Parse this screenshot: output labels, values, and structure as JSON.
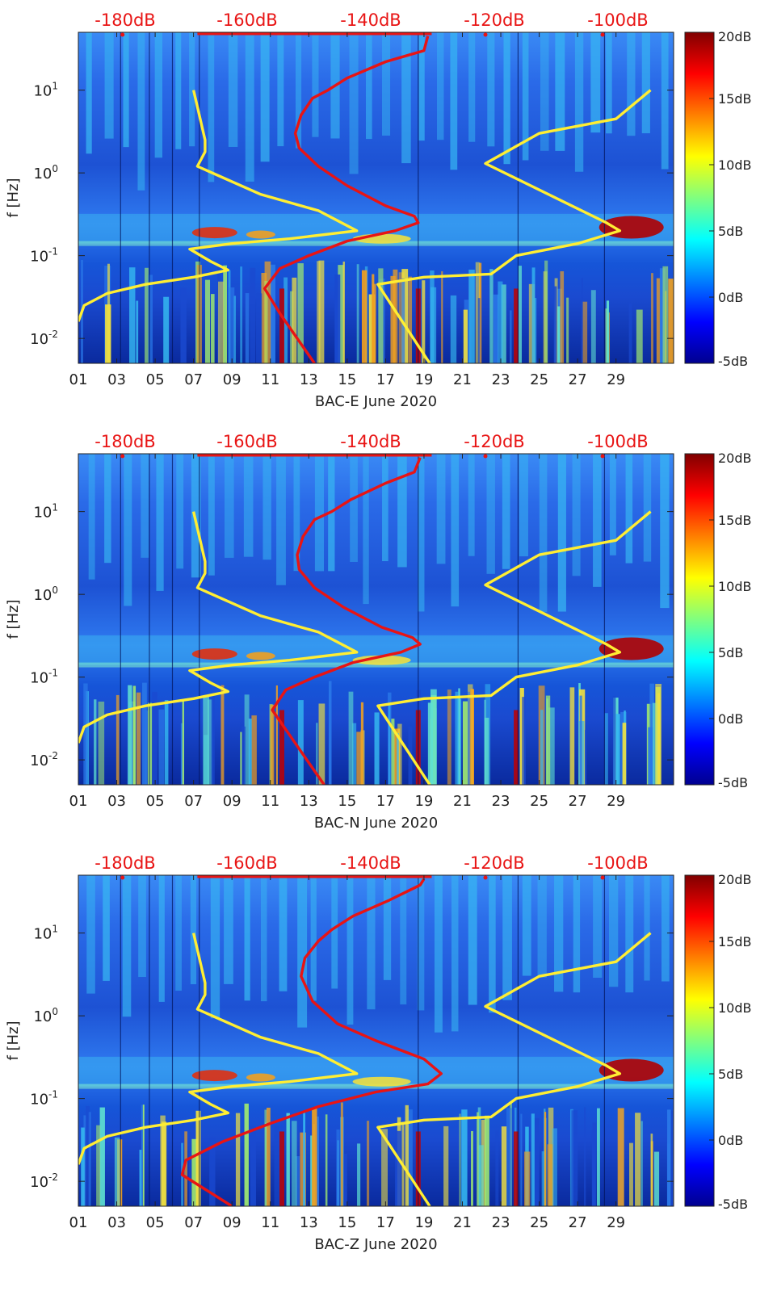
{
  "chart_data": [
    {
      "type": "heatmap",
      "title": "",
      "xlabel": "BAC-E June 2020",
      "ylabel": "f [Hz]",
      "xlim": [
        1,
        32
      ],
      "ylim": [
        0.005,
        50
      ],
      "yscale": "log",
      "x_ticks": [
        "01",
        "03",
        "05",
        "07",
        "09",
        "11",
        "13",
        "15",
        "17",
        "19",
        "21",
        "23",
        "25",
        "27",
        "29"
      ],
      "y_ticks": [
        {
          "value": 0.01,
          "base": "10",
          "exp": "-2"
        },
        {
          "value": 0.1,
          "base": "10",
          "exp": "-1"
        },
        {
          "value": 1,
          "base": "10",
          "exp": "0"
        },
        {
          "value": 10,
          "base": "10",
          "exp": "1"
        }
      ],
      "top_labels": [
        "-180dB",
        "-160dB",
        "-140dB",
        "-120dB",
        "-100dB"
      ],
      "colorbar": {
        "range": [
          -5,
          20
        ],
        "ticks": [
          "20dB",
          "15dB",
          "10dB",
          "5dB",
          "0dB",
          "-5dB"
        ],
        "colormap": "jet"
      },
      "series": [
        {
          "name": "yellow reference curve (left)",
          "color": "#ffee33",
          "points": [
            [
              1.0,
              0.016
            ],
            [
              1.3,
              0.025
            ],
            [
              2.5,
              0.035
            ],
            [
              4.5,
              0.045
            ],
            [
              7.0,
              0.055
            ],
            [
              8.8,
              0.067
            ],
            [
              7.9,
              0.085
            ],
            [
              6.8,
              0.12
            ],
            [
              9.0,
              0.14
            ],
            [
              12.0,
              0.16
            ],
            [
              15.5,
              0.2
            ],
            [
              13.5,
              0.35
            ],
            [
              10.5,
              0.55
            ],
            [
              7.2,
              1.2
            ],
            [
              7.6,
              1.8
            ],
            [
              7.6,
              2.5
            ],
            [
              7.0,
              10.0
            ]
          ]
        },
        {
          "name": "red reference curve",
          "color": "#e81414",
          "points": [
            [
              13.3,
              0.005
            ],
            [
              11.5,
              0.02
            ],
            [
              10.7,
              0.04
            ],
            [
              11.5,
              0.07
            ],
            [
              13.0,
              0.1
            ],
            [
              15.0,
              0.15
            ],
            [
              17.5,
              0.2
            ],
            [
              18.7,
              0.25
            ],
            [
              18.5,
              0.3
            ],
            [
              17.0,
              0.4
            ],
            [
              15.0,
              0.7
            ],
            [
              13.5,
              1.2
            ],
            [
              12.5,
              2.0
            ],
            [
              12.3,
              3.0
            ],
            [
              12.6,
              5.0
            ],
            [
              13.2,
              8.0
            ],
            [
              14.0,
              10.0
            ],
            [
              15.0,
              14.0
            ],
            [
              17.0,
              22.0
            ],
            [
              19.0,
              30.0
            ],
            [
              19.2,
              45.0
            ]
          ]
        },
        {
          "name": "yellow reference curve (right)",
          "color": "#ffee33",
          "points": [
            [
              19.3,
              0.005
            ],
            [
              16.6,
              0.045
            ],
            [
              19.0,
              0.055
            ],
            [
              22.5,
              0.06
            ],
            [
              23.8,
              0.1
            ],
            [
              27.0,
              0.14
            ],
            [
              29.2,
              0.2
            ],
            [
              28.5,
              0.25
            ],
            [
              22.2,
              1.3
            ],
            [
              25.0,
              3.0
            ],
            [
              29.0,
              4.5
            ],
            [
              30.8,
              10.0
            ]
          ]
        }
      ]
    },
    {
      "type": "heatmap",
      "title": "",
      "xlabel": "BAC-N June 2020",
      "ylabel": "f [Hz]",
      "xlim": [
        1,
        32
      ],
      "ylim": [
        0.005,
        50
      ],
      "yscale": "log",
      "x_ticks": [
        "01",
        "03",
        "05",
        "07",
        "09",
        "11",
        "13",
        "15",
        "17",
        "19",
        "21",
        "23",
        "25",
        "27",
        "29"
      ],
      "y_ticks": [
        {
          "value": 0.01,
          "base": "10",
          "exp": "-2"
        },
        {
          "value": 0.1,
          "base": "10",
          "exp": "-1"
        },
        {
          "value": 1,
          "base": "10",
          "exp": "0"
        },
        {
          "value": 10,
          "base": "10",
          "exp": "1"
        }
      ],
      "top_labels": [
        "-180dB",
        "-160dB",
        "-140dB",
        "-120dB",
        "-100dB"
      ],
      "colorbar": {
        "range": [
          -5,
          20
        ],
        "ticks": [
          "20dB",
          "15dB",
          "10dB",
          "5dB",
          "0dB",
          "-5dB"
        ],
        "colormap": "jet"
      },
      "series": [
        {
          "name": "yellow reference curve (left)",
          "color": "#ffee33",
          "points": [
            [
              1.0,
              0.016
            ],
            [
              1.3,
              0.025
            ],
            [
              2.5,
              0.035
            ],
            [
              4.5,
              0.045
            ],
            [
              7.0,
              0.055
            ],
            [
              8.8,
              0.067
            ],
            [
              7.9,
              0.085
            ],
            [
              6.8,
              0.12
            ],
            [
              9.0,
              0.14
            ],
            [
              12.0,
              0.16
            ],
            [
              15.5,
              0.2
            ],
            [
              13.5,
              0.35
            ],
            [
              10.5,
              0.55
            ],
            [
              7.2,
              1.2
            ],
            [
              7.6,
              1.8
            ],
            [
              7.6,
              2.5
            ],
            [
              7.0,
              10.0
            ]
          ]
        },
        {
          "name": "red reference curve",
          "color": "#e81414",
          "points": [
            [
              13.8,
              0.005
            ],
            [
              12.0,
              0.02
            ],
            [
              11.1,
              0.04
            ],
            [
              11.8,
              0.07
            ],
            [
              13.3,
              0.1
            ],
            [
              15.3,
              0.15
            ],
            [
              17.8,
              0.2
            ],
            [
              18.8,
              0.25
            ],
            [
              18.4,
              0.3
            ],
            [
              16.8,
              0.4
            ],
            [
              14.8,
              0.7
            ],
            [
              13.3,
              1.2
            ],
            [
              12.5,
              2.0
            ],
            [
              12.4,
              3.0
            ],
            [
              12.7,
              5.0
            ],
            [
              13.3,
              8.0
            ],
            [
              14.2,
              10.0
            ],
            [
              15.2,
              14.0
            ],
            [
              17.0,
              22.0
            ],
            [
              18.5,
              30.0
            ],
            [
              18.8,
              45.0
            ]
          ]
        },
        {
          "name": "yellow reference curve (right)",
          "color": "#ffee33",
          "points": [
            [
              19.3,
              0.005
            ],
            [
              16.6,
              0.045
            ],
            [
              19.0,
              0.055
            ],
            [
              22.5,
              0.06
            ],
            [
              23.8,
              0.1
            ],
            [
              27.0,
              0.14
            ],
            [
              29.2,
              0.2
            ],
            [
              28.5,
              0.25
            ],
            [
              22.2,
              1.3
            ],
            [
              25.0,
              3.0
            ],
            [
              29.0,
              4.5
            ],
            [
              30.8,
              10.0
            ]
          ]
        }
      ]
    },
    {
      "type": "heatmap",
      "title": "",
      "xlabel": "BAC-Z June 2020",
      "ylabel": "f [Hz]",
      "xlim": [
        1,
        32
      ],
      "ylim": [
        0.005,
        50
      ],
      "yscale": "log",
      "x_ticks": [
        "01",
        "03",
        "05",
        "07",
        "09",
        "11",
        "13",
        "15",
        "17",
        "19",
        "21",
        "23",
        "25",
        "27",
        "29"
      ],
      "y_ticks": [
        {
          "value": 0.01,
          "base": "10",
          "exp": "-2"
        },
        {
          "value": 0.1,
          "base": "10",
          "exp": "-1"
        },
        {
          "value": 1,
          "base": "10",
          "exp": "0"
        },
        {
          "value": 10,
          "base": "10",
          "exp": "1"
        }
      ],
      "top_labels": [
        "-180dB",
        "-160dB",
        "-140dB",
        "-120dB",
        "-100dB"
      ],
      "colorbar": {
        "range": [
          -5,
          20
        ],
        "ticks": [
          "20dB",
          "15dB",
          "10dB",
          "5dB",
          "0dB",
          "-5dB"
        ],
        "colormap": "jet"
      },
      "series": [
        {
          "name": "yellow reference curve (left)",
          "color": "#ffee33",
          "points": [
            [
              1.0,
              0.016
            ],
            [
              1.3,
              0.025
            ],
            [
              2.5,
              0.035
            ],
            [
              4.5,
              0.045
            ],
            [
              7.0,
              0.055
            ],
            [
              8.8,
              0.067
            ],
            [
              7.9,
              0.085
            ],
            [
              6.8,
              0.12
            ],
            [
              9.0,
              0.14
            ],
            [
              12.0,
              0.16
            ],
            [
              15.5,
              0.2
            ],
            [
              13.5,
              0.35
            ],
            [
              10.5,
              0.55
            ],
            [
              7.2,
              1.2
            ],
            [
              7.6,
              1.8
            ],
            [
              7.6,
              2.5
            ],
            [
              7.0,
              10.0
            ]
          ]
        },
        {
          "name": "red reference curve",
          "color": "#e81414",
          "points": [
            [
              9.0,
              0.005
            ],
            [
              6.4,
              0.012
            ],
            [
              6.6,
              0.018
            ],
            [
              8.5,
              0.03
            ],
            [
              11.0,
              0.05
            ],
            [
              13.5,
              0.08
            ],
            [
              16.5,
              0.12
            ],
            [
              19.2,
              0.15
            ],
            [
              19.9,
              0.2
            ],
            [
              19.0,
              0.3
            ],
            [
              16.5,
              0.5
            ],
            [
              14.5,
              0.8
            ],
            [
              13.2,
              1.5
            ],
            [
              12.6,
              3.0
            ],
            [
              12.8,
              5.0
            ],
            [
              13.5,
              8.0
            ],
            [
              14.2,
              11.0
            ],
            [
              15.3,
              16.0
            ],
            [
              17.2,
              25.0
            ],
            [
              18.8,
              38.0
            ],
            [
              19.0,
              45.0
            ]
          ]
        },
        {
          "name": "yellow reference curve (right)",
          "color": "#ffee33",
          "points": [
            [
              19.3,
              0.005
            ],
            [
              16.6,
              0.045
            ],
            [
              19.0,
              0.055
            ],
            [
              22.5,
              0.06
            ],
            [
              23.8,
              0.1
            ],
            [
              27.0,
              0.14
            ],
            [
              29.2,
              0.2
            ],
            [
              28.5,
              0.25
            ],
            [
              22.2,
              1.3
            ],
            [
              25.0,
              3.0
            ],
            [
              29.0,
              4.5
            ],
            [
              30.8,
              10.0
            ]
          ]
        }
      ]
    }
  ]
}
